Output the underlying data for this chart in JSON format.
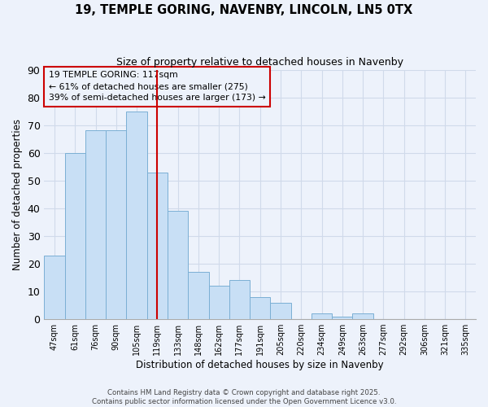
{
  "title1": "19, TEMPLE GORING, NAVENBY, LINCOLN, LN5 0TX",
  "title2": "Size of property relative to detached houses in Navenby",
  "xlabel": "Distribution of detached houses by size in Navenby",
  "ylabel": "Number of detached properties",
  "categories": [
    "47sqm",
    "61sqm",
    "76sqm",
    "90sqm",
    "105sqm",
    "119sqm",
    "133sqm",
    "148sqm",
    "162sqm",
    "177sqm",
    "191sqm",
    "205sqm",
    "220sqm",
    "234sqm",
    "249sqm",
    "263sqm",
    "277sqm",
    "292sqm",
    "306sqm",
    "321sqm",
    "335sqm"
  ],
  "values": [
    23,
    60,
    68,
    68,
    75,
    53,
    39,
    17,
    12,
    14,
    8,
    6,
    0,
    2,
    1,
    2,
    0,
    0,
    0,
    0,
    0
  ],
  "bar_color": "#c8dff5",
  "bar_edge_color": "#7bafd4",
  "vline_x_index": 5,
  "vline_color": "#cc0000",
  "annotation_text": "19 TEMPLE GORING: 117sqm\n← 61% of detached houses are smaller (275)\n39% of semi-detached houses are larger (173) →",
  "background_color": "#edf2fb",
  "grid_color": "#d0daea",
  "ylim": [
    0,
    90
  ],
  "yticks": [
    0,
    10,
    20,
    30,
    40,
    50,
    60,
    70,
    80,
    90
  ],
  "footer": "Contains HM Land Registry data © Crown copyright and database right 2025.\nContains public sector information licensed under the Open Government Licence v3.0."
}
